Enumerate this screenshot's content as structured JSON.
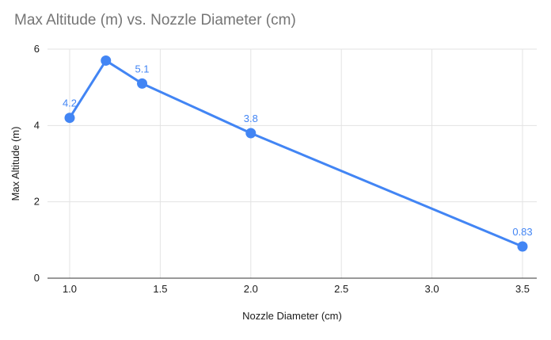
{
  "chart_data": {
    "type": "line",
    "title": "Max Altitude (m) vs. Nozzle Diameter (cm)",
    "xlabel": "Nozzle Diameter (cm)",
    "ylabel": "Max Altitude (m)",
    "x": [
      1.0,
      1.2,
      1.4,
      2.0,
      3.5
    ],
    "y": [
      4.2,
      5.7,
      5.1,
      3.8,
      0.83
    ],
    "point_labels": [
      "4.2",
      "",
      "5.1",
      "3.8",
      "0.83"
    ],
    "xlim": [
      1.0,
      3.5
    ],
    "ylim": [
      0,
      6
    ],
    "x_ticks": [
      "1.0",
      "1.5",
      "2.0",
      "2.5",
      "3.0",
      "3.5"
    ],
    "y_ticks": [
      "0",
      "2",
      "4",
      "6"
    ],
    "grid": true,
    "legend": "none",
    "colors": {
      "line": "#4285f4",
      "marker": "#4285f4",
      "data_label": "#4285f4",
      "title": "#757575",
      "axis_text": "#1a1a1a",
      "grid_line": "#e3e3e3",
      "axis_line": "#333333",
      "background": "#ffffff"
    }
  }
}
